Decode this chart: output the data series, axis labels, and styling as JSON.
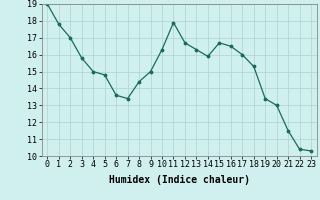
{
  "x": [
    0,
    1,
    2,
    3,
    4,
    5,
    6,
    7,
    8,
    9,
    10,
    11,
    12,
    13,
    14,
    15,
    16,
    17,
    18,
    19,
    20,
    21,
    22,
    23
  ],
  "y": [
    19.0,
    17.8,
    17.0,
    15.8,
    15.0,
    14.8,
    13.6,
    13.4,
    14.4,
    15.0,
    16.3,
    17.9,
    16.7,
    16.3,
    15.9,
    16.7,
    16.5,
    16.0,
    15.3,
    13.4,
    13.0,
    11.5,
    10.4,
    10.3
  ],
  "bg_color": "#cff0ee",
  "grid_color": "#aad4d0",
  "line_color": "#1a6b5a",
  "marker_color": "#1a6b5a",
  "xlabel": "Humidex (Indice chaleur)",
  "ylabel": "",
  "title": "",
  "xlim": [
    -0.5,
    23.5
  ],
  "ylim": [
    10,
    19
  ],
  "yticks": [
    10,
    11,
    12,
    13,
    14,
    15,
    16,
    17,
    18,
    19
  ],
  "xticks": [
    0,
    1,
    2,
    3,
    4,
    5,
    6,
    7,
    8,
    9,
    10,
    11,
    12,
    13,
    14,
    15,
    16,
    17,
    18,
    19,
    20,
    21,
    22,
    23
  ],
  "xlabel_fontsize": 7.0,
  "tick_fontsize": 6.0
}
